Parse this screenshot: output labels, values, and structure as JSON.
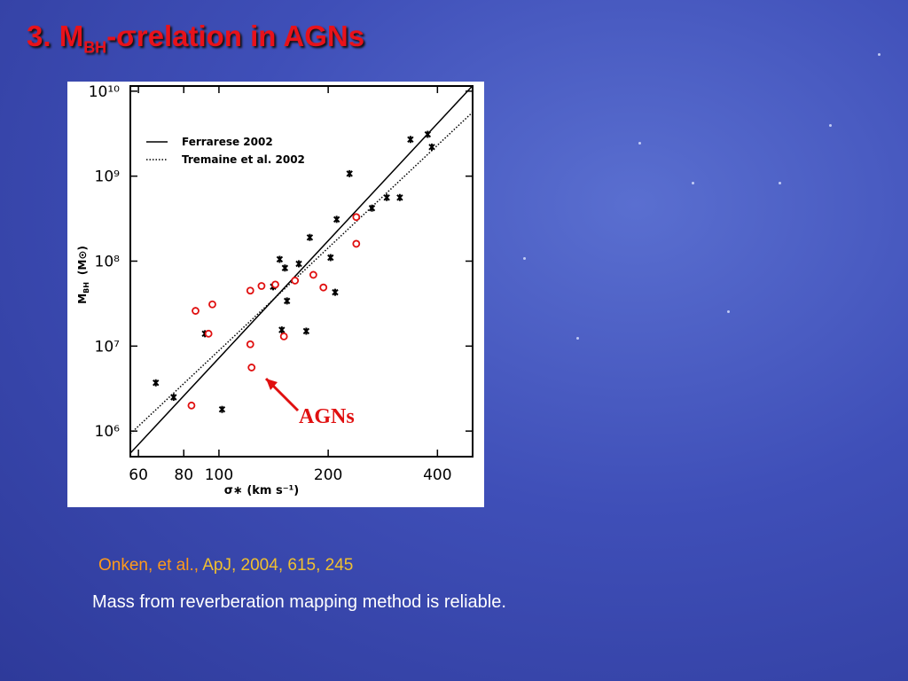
{
  "title": {
    "lead": "3. M",
    "sub": "BH",
    "rest": "-σrelation in AGNs"
  },
  "chart_data": {
    "type": "scatter",
    "xlabel": "σ∗ (km s⁻¹)",
    "ylabel": {
      "main": "M",
      "sub": "BH",
      "unit": "(M⊙)"
    },
    "xscale": "log",
    "yscale": "log",
    "xlim": [
      57,
      500
    ],
    "ylim": [
      500000,
      11500000000
    ],
    "xticks": [
      60,
      80,
      100,
      200,
      400
    ],
    "yticks": [
      {
        "value": 1000000,
        "label": "10⁶"
      },
      {
        "value": 10000000,
        "label": "10⁷"
      },
      {
        "value": 100000000,
        "label": "10⁸"
      },
      {
        "value": 1000000000,
        "label": "10⁹"
      },
      {
        "value": 10000000000,
        "label": "10¹⁰"
      }
    ],
    "legend": "upper left",
    "annotation": "AGNs",
    "series": [
      {
        "name": "Ferrarese 2002",
        "kind": "line",
        "style": "solid",
        "color": "#000000",
        "x": [
          57,
          501
        ],
        "values": [
          550000,
          11700000000
        ]
      },
      {
        "name": "Tremaine et al. 2002",
        "kind": "line",
        "style": "dotted",
        "color": "#000000",
        "x": [
          57,
          501
        ],
        "values": [
          930000,
          5700000000
        ]
      },
      {
        "kind": "points",
        "marker": "cross",
        "color": "#000000",
        "x": [
          67,
          75,
          102,
          91.5,
          229,
          337,
          376,
          386,
          290,
          315,
          264,
          211,
          178,
          147,
          166,
          203,
          209,
          154,
          174,
          149,
          141,
          152
        ],
        "values": [
          3700000,
          2500000,
          1800000,
          14000000,
          1070000000,
          2700000000,
          3100000000,
          2200000000,
          560000000,
          560000000,
          420000000,
          310000000,
          190000000,
          105000000,
          93000000,
          110000000,
          43000000,
          34000000,
          15000000,
          15500000,
          50000000,
          83000000
        ]
      },
      {
        "kind": "points",
        "marker": "open-circle",
        "color": "#e01010",
        "x": [
          86.2,
          95.9,
          93.6,
          84,
          123,
          122,
          151,
          122,
          131,
          143,
          162,
          182,
          194,
          239,
          239
        ],
        "values": [
          26000000,
          31000000,
          14000000,
          2000000,
          5600000,
          10500000,
          13000000,
          45000000,
          51000000,
          53000000,
          59000000,
          69000000,
          49000000,
          330000000,
          160000000
        ]
      }
    ]
  },
  "citation": {
    "authors": "Onken, et al.,",
    "reference": "ApJ, 2004, 615, 245"
  },
  "caption": "Mass from reverberation mapping method is reliable."
}
